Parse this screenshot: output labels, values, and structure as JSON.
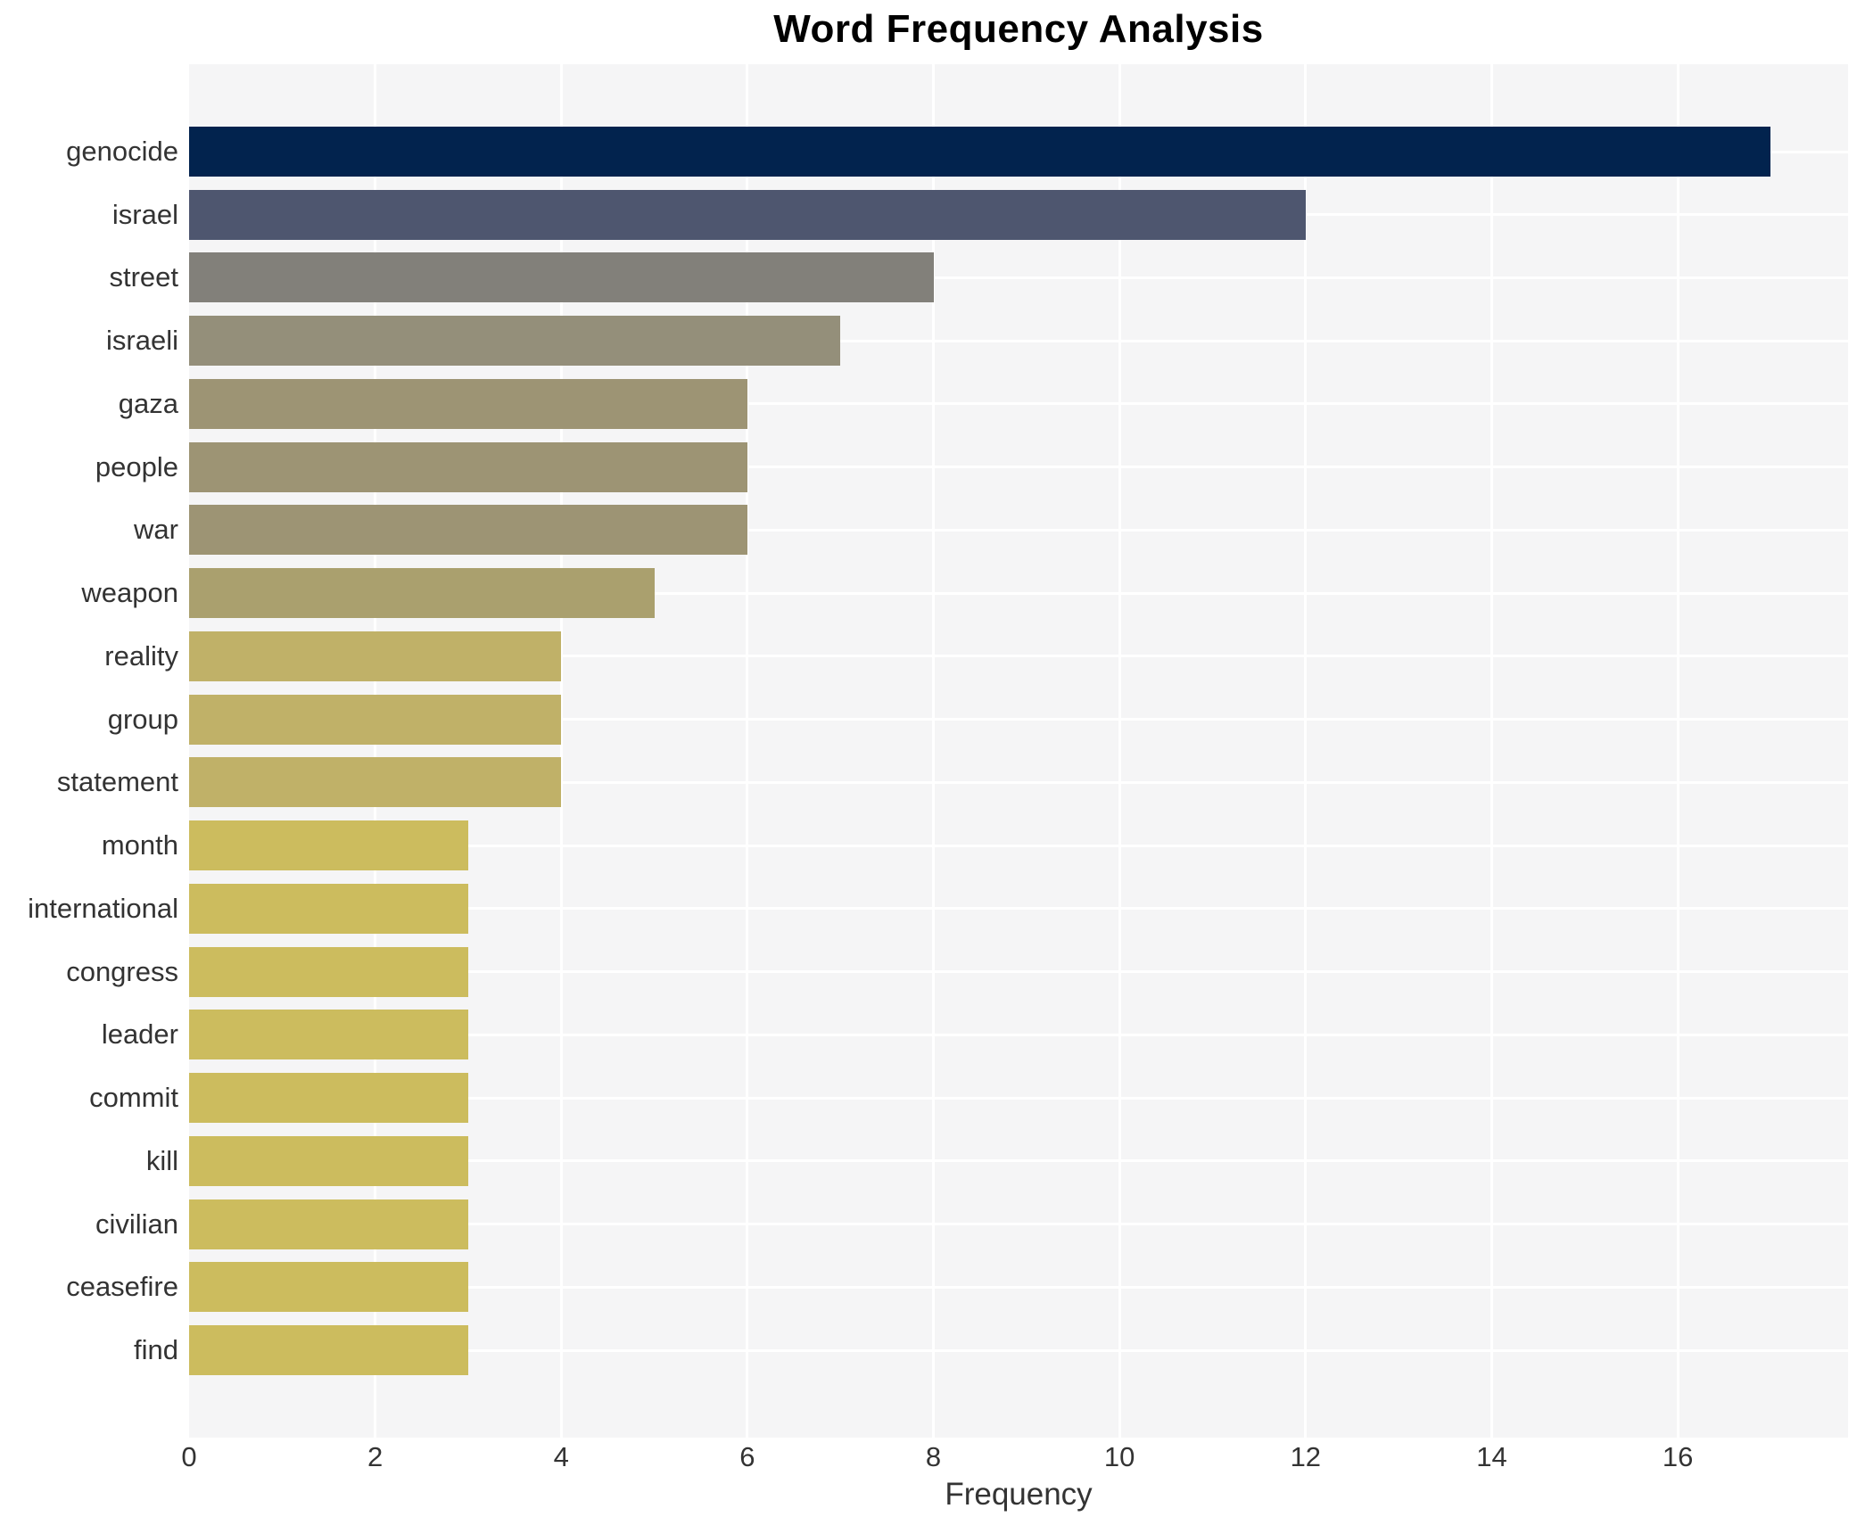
{
  "chart_data": {
    "type": "bar",
    "orientation": "horizontal",
    "title": "Word Frequency Analysis",
    "xlabel": "Frequency",
    "ylabel": "",
    "categories": [
      "genocide",
      "israel",
      "street",
      "israeli",
      "gaza",
      "people",
      "war",
      "weapon",
      "reality",
      "group",
      "statement",
      "month",
      "international",
      "congress",
      "leader",
      "commit",
      "kill",
      "civilian",
      "ceasefire",
      "find"
    ],
    "values": [
      17,
      12,
      8,
      7,
      6,
      6,
      6,
      5,
      4,
      4,
      4,
      3,
      3,
      3,
      3,
      3,
      3,
      3,
      3,
      3
    ],
    "bar_colors": [
      "#02234e",
      "#4e566f",
      "#82807a",
      "#948f7a",
      "#9d9474",
      "#9d9474",
      "#9d9474",
      "#aaa06e",
      "#c0b168",
      "#c0b168",
      "#c0b168",
      "#ccbc5e",
      "#ccbc5e",
      "#ccbc5e",
      "#ccbc5e",
      "#ccbc5e",
      "#ccbc5e",
      "#ccbc5e",
      "#ccbc5e",
      "#ccbc5e"
    ],
    "xlim": [
      0,
      17.83
    ],
    "xticks": [
      0,
      2,
      4,
      6,
      8,
      10,
      12,
      14,
      16
    ],
    "grid": true,
    "legend_position": "none",
    "plot_bg_color": "#f5f5f6",
    "grid_color": "#ffffff",
    "tick_label_color": "#333333",
    "title_color": "#000000"
  }
}
